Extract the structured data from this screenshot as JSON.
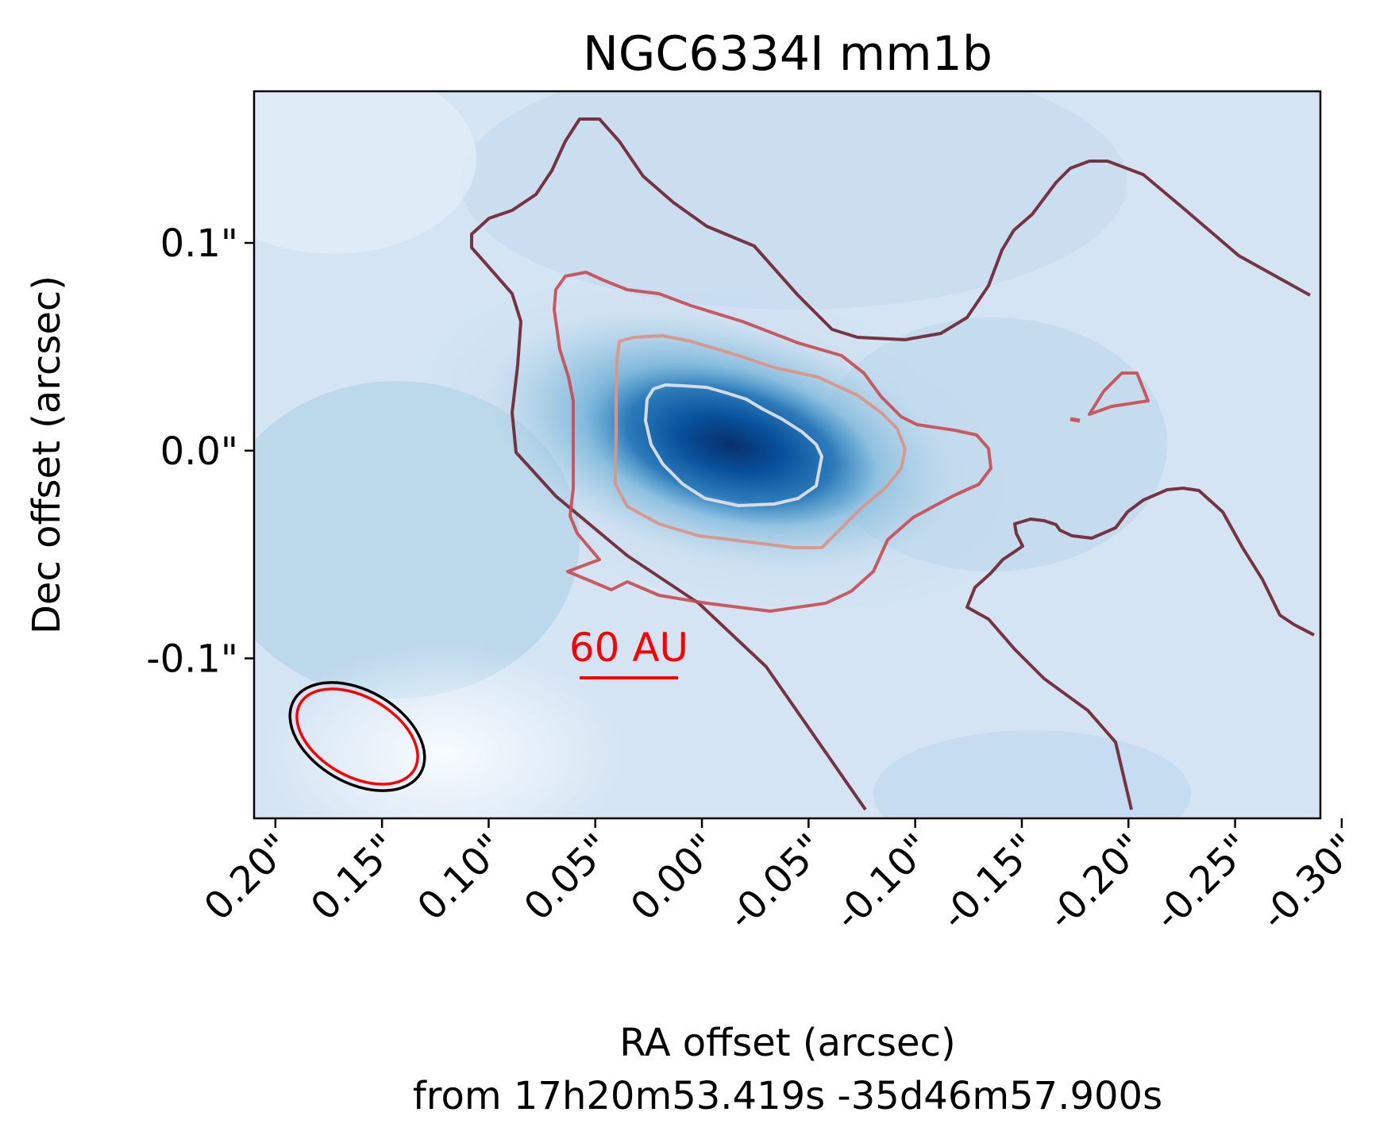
{
  "chart_data": {
    "type": "heatmap",
    "title": "NGC6334I mm1b",
    "xlabel": "RA offset (arcsec)",
    "xlabel_line2": "from 17h20m53.419s -35d46m57.900s",
    "ylabel": "Dec offset (arcsec)",
    "xlim": [
      0.21,
      -0.29
    ],
    "ylim": [
      -0.177,
      0.173
    ],
    "x_ticks": [
      0.2,
      0.15,
      0.1,
      0.05,
      0.0,
      -0.05,
      -0.1,
      -0.15,
      -0.2,
      -0.25,
      -0.3
    ],
    "x_tick_labels": [
      "0.20\"",
      "0.15\"",
      "0.10\"",
      "0.05\"",
      "0.00\"",
      "-0.05\"",
      "-0.10\"",
      "-0.15\"",
      "-0.20\"",
      "-0.25\"",
      "-0.30\""
    ],
    "y_ticks": [
      0.1,
      0.0,
      -0.1
    ],
    "y_tick_labels": [
      "0.1\"",
      "0.0\"",
      "-0.1\""
    ],
    "colormap": "Blues",
    "grid": false,
    "emission_peak": {
      "ra": -0.02,
      "dec": 0.002
    },
    "contour_levels": [
      {
        "level": 1,
        "color": "#6b2030"
      },
      {
        "level": 2,
        "color": "#c84a52"
      },
      {
        "level": 3,
        "color": "#d9968a"
      },
      {
        "level": 4,
        "color": "#dde0ec"
      }
    ],
    "scale_bar": {
      "label": "60 AU",
      "length_arcsec": 0.048,
      "color": "#ff0000"
    },
    "beams": [
      {
        "name": "continuum",
        "color": "#000000"
      },
      {
        "name": "line",
        "color": "#ff0000"
      }
    ]
  }
}
